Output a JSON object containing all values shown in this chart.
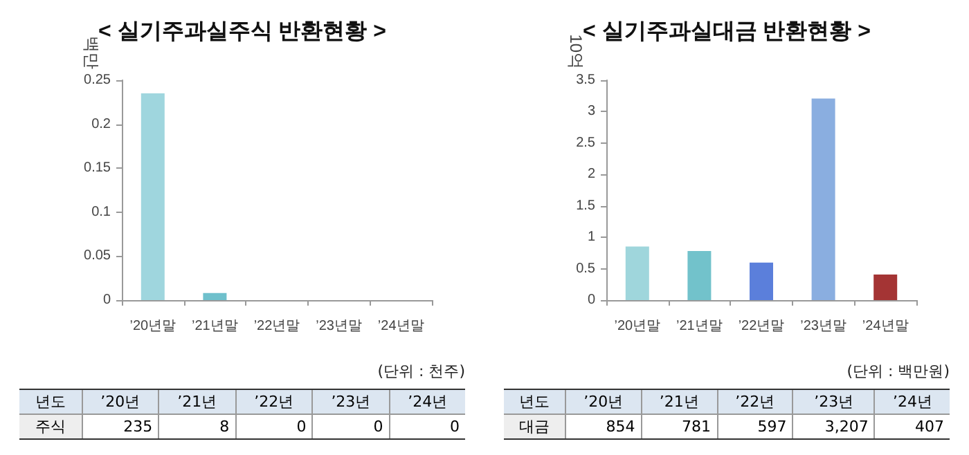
{
  "chart_data": [
    {
      "type": "bar",
      "title": "< 실기주과실주식 반환현황 >",
      "ylabel": "백만",
      "categories": [
        "’20년말",
        "’21년말",
        "’22년말",
        "’23년말",
        "’24년말"
      ],
      "values": [
        0.235,
        0.008,
        0,
        0,
        0
      ],
      "colors": [
        "#9fd6de",
        "#6fc0cc",
        "#6fc0cc",
        "#6fc0cc",
        "#6fc0cc"
      ],
      "ylim": [
        0,
        0.25
      ],
      "yticks": [
        0,
        0.05,
        0.1,
        0.15,
        0.2,
        0.25
      ],
      "grid": false,
      "annotations": [
        "(단위 : 천주)",
        "년도",
        "주식",
        "’20년",
        "’21년",
        "’22년",
        "’23년",
        "’24년",
        "235",
        "8",
        "0",
        "0",
        "0"
      ]
    },
    {
      "type": "bar",
      "title": "< 실기주과실대금 반환현황 >",
      "ylabel": "10억",
      "categories": [
        "’20년말",
        "’21년말",
        "’22년말",
        "’23년말",
        "’24년말"
      ],
      "values": [
        0.854,
        0.781,
        0.597,
        3.207,
        0.407
      ],
      "colors": [
        "#9fd6dc",
        "#72c2cb",
        "#5b7fdb",
        "#8aaee0",
        "#a43434"
      ],
      "ylim": [
        0,
        3.5
      ],
      "yticks": [
        0,
        0.5,
        1,
        1.5,
        2,
        2.5,
        3,
        3.5
      ],
      "grid": false,
      "annotations": [
        "(단위 : 백만원)",
        "년도",
        "대금",
        "’20년",
        "’21년",
        "’22년",
        "’23년",
        "’24년",
        "854",
        "781",
        "597",
        "3,207",
        "407"
      ]
    }
  ]
}
